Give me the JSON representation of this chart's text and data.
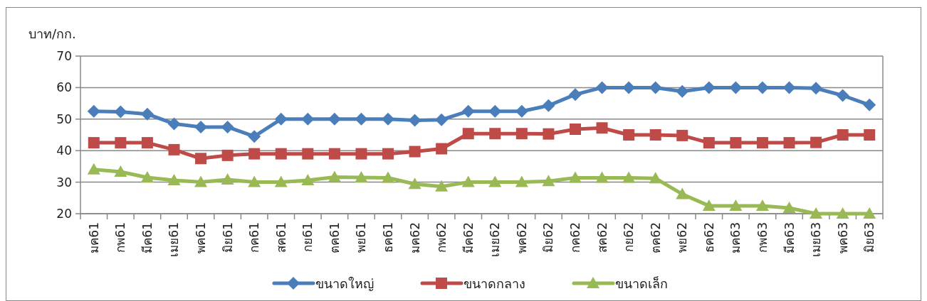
{
  "chart_data": {
    "type": "line",
    "ylabel": "บาท/กก.",
    "categories": [
      "มค61",
      "กพ61",
      "มีค61",
      "เมย61",
      "พค61",
      "มิย61",
      "กค61",
      "สค61",
      "กย61",
      "ตค61",
      "พย61",
      "ธค61",
      "มค62",
      "กพ62",
      "มีค62",
      "เมย62",
      "พค62",
      "มิย62",
      "กค62",
      "สค62",
      "กย62",
      "ตค62",
      "พย62",
      "ธค62",
      "มค63",
      "กพ63",
      "มีค63",
      "เมย63",
      "พค63",
      "มิย63"
    ],
    "series": [
      {
        "name": "ขนาดใหญ่",
        "color": "#4a7ebb",
        "marker": "diamond",
        "values": [
          52.5,
          52.3,
          51.6,
          48.5,
          47.5,
          47.5,
          44.5,
          50,
          50,
          50,
          50,
          50,
          49.6,
          49.8,
          52.5,
          52.5,
          52.5,
          54.3,
          57.8,
          60,
          60,
          60,
          58.8,
          60,
          60,
          60,
          60,
          59.8,
          57.5,
          54.5
        ]
      },
      {
        "name": "ขนาดกลาง",
        "color": "#be4b48",
        "marker": "square",
        "values": [
          42.5,
          42.5,
          42.5,
          40.3,
          37.5,
          38.5,
          39,
          39,
          39,
          39,
          39,
          39,
          39.7,
          40.6,
          45.4,
          45.4,
          45.4,
          45.3,
          46.8,
          47.2,
          45,
          45,
          44.8,
          42.5,
          42.5,
          42.5,
          42.5,
          42.6,
          45,
          45
        ]
      },
      {
        "name": "ขนาดเล็ก",
        "color": "#98b954",
        "marker": "triangle",
        "values": [
          34,
          33.3,
          31.5,
          30.6,
          30,
          30.8,
          30,
          30,
          30.6,
          31.6,
          31.5,
          31.4,
          29.4,
          28.6,
          30,
          30,
          30,
          30.3,
          31.4,
          31.4,
          31.4,
          31.2,
          26.2,
          22.5,
          22.5,
          22.5,
          21.8,
          20,
          20,
          20
        ]
      }
    ],
    "ylim": [
      20,
      70
    ],
    "yticks": [
      20,
      30,
      40,
      50,
      60,
      70
    ],
    "grid": "y",
    "legend": "bottom",
    "line_style": "solid"
  }
}
